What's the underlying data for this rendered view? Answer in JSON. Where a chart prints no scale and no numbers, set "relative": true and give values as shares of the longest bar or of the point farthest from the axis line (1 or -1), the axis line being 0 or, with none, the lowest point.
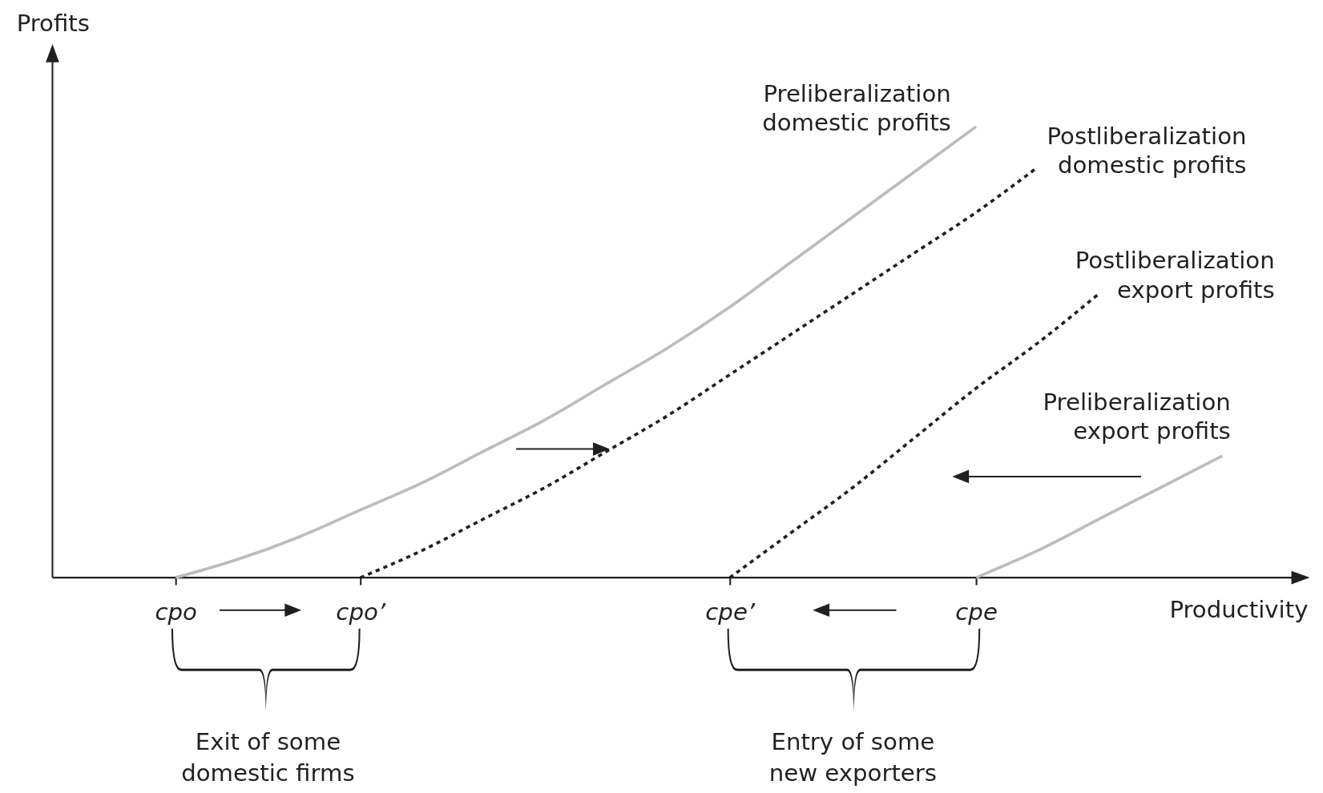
{
  "chart_data": {
    "type": "line",
    "relative": true,
    "xlabel": "Productivity",
    "ylabel": "Profits",
    "categories": [
      null,
      null,
      "cpo",
      null,
      null,
      "cpo’",
      null,
      null,
      null,
      null,
      null,
      "cpe’",
      null,
      null,
      null,
      "cpe",
      null,
      null,
      null,
      null,
      null
    ],
    "marker": "none",
    "series": [
      {
        "name": "Preliberalization domestic profits",
        "color": "#bcbcbc",
        "line_style": "solid",
        "values": [
          null,
          null,
          0,
          0.04,
          0.09,
          0.15,
          0.21,
          0.28,
          0.35,
          0.43,
          0.51,
          0.6,
          0.7,
          0.8,
          0.9,
          1,
          null,
          null,
          null,
          null,
          null
        ]
      },
      {
        "name": "Postliberalization domestic profits",
        "color": "#231f20",
        "line_style": "dotted",
        "values": [
          null,
          null,
          null,
          null,
          null,
          0,
          0.06,
          0.13,
          0.2,
          0.28,
          0.36,
          0.45,
          0.54,
          0.63,
          0.72,
          0.81,
          0.91,
          null,
          null,
          null,
          null
        ]
      },
      {
        "name": "Postliberalization export profits",
        "color": "#231f20",
        "line_style": "dotted",
        "values": [
          null,
          null,
          null,
          null,
          null,
          null,
          null,
          null,
          null,
          null,
          null,
          0,
          0.1,
          0.2,
          0.31,
          0.42,
          0.52,
          0.63,
          null,
          null,
          null
        ]
      },
      {
        "name": "Preliberalization export profits",
        "color": "#bcbcbc",
        "line_style": "solid",
        "values": [
          null,
          null,
          null,
          null,
          null,
          null,
          null,
          null,
          null,
          null,
          null,
          null,
          null,
          null,
          null,
          0,
          0.06,
          0.13,
          0.2,
          0.27,
          null
        ]
      }
    ],
    "annotations": [
      "Exit of some domestic firms",
      "Entry of some new exporters"
    ]
  }
}
